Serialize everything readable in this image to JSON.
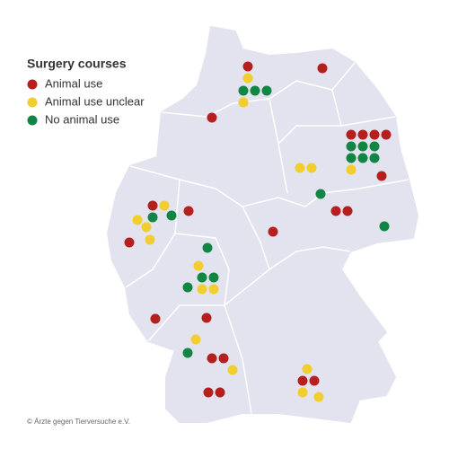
{
  "legend": {
    "title": "Surgery courses",
    "items": [
      {
        "label": "Animal use",
        "color": "#b5201e"
      },
      {
        "label": "Animal use unclear",
        "color": "#f2cd2e"
      },
      {
        "label": "No animal use",
        "color": "#118544"
      }
    ]
  },
  "credit": "© Ärzte gegen Tierversuche e.V."
}
